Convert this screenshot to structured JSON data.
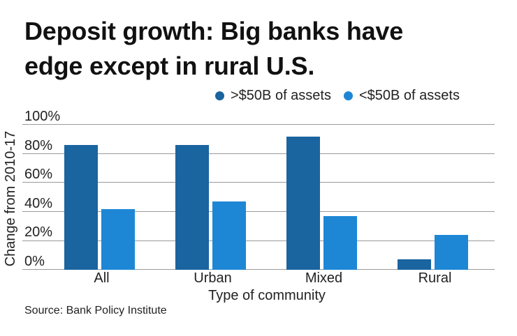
{
  "title": {
    "line1": "Deposit growth: Big banks have",
    "line2": "edge except in rural U.S."
  },
  "legend": [
    {
      "label": ">$50B of assets",
      "color": "#1a64a0"
    },
    {
      "label": "<$50B of assets",
      "color": "#1d87d5"
    }
  ],
  "axes": {
    "ylabel": "Change from 2010-17",
    "xlabel": "Type of community",
    "yticks": [
      "0%",
      "20%",
      "40%",
      "60%",
      "80%",
      "100%"
    ]
  },
  "source": "Source: Bank Policy Institute",
  "chart_data": {
    "type": "bar",
    "title": "Deposit growth: Big banks have edge except in rural U.S.",
    "xlabel": "Type of community",
    "ylabel": "Change from 2010-17",
    "categories": [
      "All",
      "Urban",
      "Mixed",
      "Rural"
    ],
    "series": [
      {
        "name": ">$50B of assets",
        "color": "#1a64a0",
        "values": [
          86,
          86,
          92,
          7
        ]
      },
      {
        "name": "<$50B of assets",
        "color": "#1d87d5",
        "values": [
          42,
          47,
          37,
          24
        ]
      }
    ],
    "ylim": [
      0,
      100
    ],
    "yticks": [
      0,
      20,
      40,
      60,
      80,
      100
    ],
    "ytick_format": "percent",
    "grid": true,
    "legend_position": "top-right",
    "source": "Bank Policy Institute"
  }
}
